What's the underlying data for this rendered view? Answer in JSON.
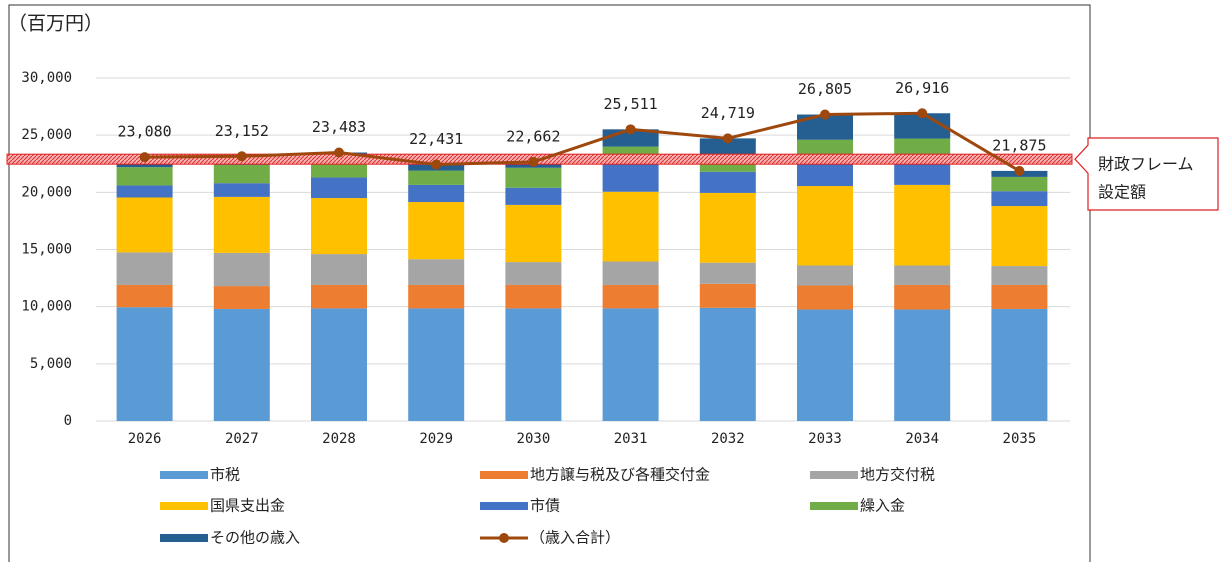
{
  "chart_data": {
    "type": "bar",
    "stacked": true,
    "y_axis_label": "（百万円）",
    "categories": [
      "2026",
      "2027",
      "2028",
      "2029",
      "2030",
      "2031",
      "2032",
      "2033",
      "2034",
      "2035"
    ],
    "ylim": [
      0,
      30000
    ],
    "yticks": [
      0,
      {
        "value": 5000,
        "label": "5,000"
      },
      {
        "value": 10000,
        "label": "10,000"
      },
      {
        "value": 15000,
        "label": "15,000"
      },
      {
        "value": 20000,
        "label": "20,000"
      },
      {
        "value": 25000,
        "label": "25,000"
      },
      {
        "value": 30000,
        "label": "30,000"
      }
    ],
    "grid": true,
    "series": [
      {
        "name": "市税",
        "color": "#5b9bd5",
        "values": [
          9950,
          9800,
          9850,
          9850,
          9850,
          9850,
          9900,
          9750,
          9750,
          9800
        ]
      },
      {
        "name": "地方譲与税及び各種交付金",
        "color": "#ed7d31",
        "values": [
          1950,
          2000,
          2050,
          2050,
          2050,
          2050,
          2100,
          2100,
          2150,
          2100
        ]
      },
      {
        "name": "地方交付税",
        "color": "#a5a5a5",
        "values": [
          2850,
          2900,
          2700,
          2250,
          2000,
          2050,
          1850,
          1750,
          1700,
          1650
        ]
      },
      {
        "name": "国県支出金",
        "color": "#ffc000",
        "values": [
          4800,
          4900,
          4900,
          5000,
          5000,
          6100,
          6100,
          6950,
          7050,
          5250
        ]
      },
      {
        "name": "市債",
        "color": "#4472c4",
        "values": [
          1050,
          1200,
          1800,
          1500,
          1500,
          2950,
          1850,
          2450,
          2400,
          1300
        ]
      },
      {
        "name": "繰入金",
        "color": "#70ad47",
        "values": [
          1600,
          1600,
          1300,
          1250,
          1750,
          1000,
          1200,
          1600,
          1650,
          1250
        ]
      },
      {
        "name": "その他の歳入",
        "color": "#255e91",
        "values": [
          880,
          752,
          883,
          531,
          512,
          1511,
          1719,
          2205,
          2216,
          525
        ]
      },
      {
        "name": "（歳入合計）",
        "type": "line",
        "color": "#9e480e",
        "values": [
          23080,
          23152,
          23483,
          22431,
          22662,
          25511,
          24719,
          26805,
          26916,
          21875
        ],
        "value_labels": [
          "23,080",
          "23,152",
          "23,483",
          "22,431",
          "22,662",
          "25,511",
          "24,719",
          "26,805",
          "26,916",
          "21,875"
        ]
      }
    ],
    "annotations": [
      {
        "text": [
          "財政フレーム",
          "設定額"
        ],
        "value": 22900,
        "color": "#e02020"
      }
    ]
  }
}
